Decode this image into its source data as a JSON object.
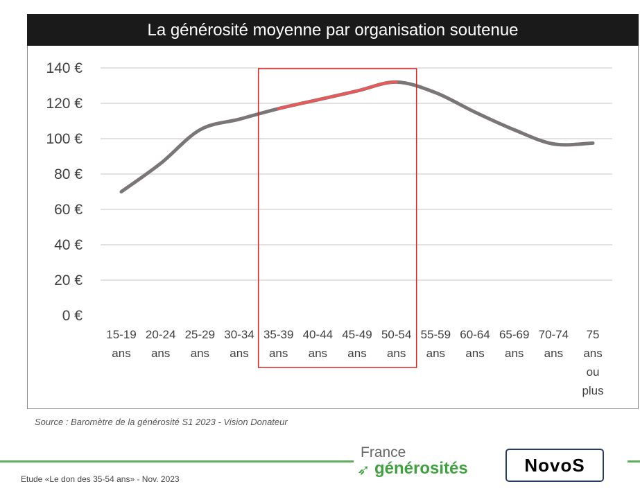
{
  "chart_data": {
    "type": "line",
    "title": "La générosité moyenne par organisation soutenue",
    "categories": [
      [
        "15-19",
        "ans"
      ],
      [
        "20-24",
        "ans"
      ],
      [
        "25-29",
        "ans"
      ],
      [
        "30-34",
        "ans"
      ],
      [
        "35-39",
        "ans"
      ],
      [
        "40-44",
        "ans"
      ],
      [
        "45-49",
        "ans"
      ],
      [
        "50-54",
        "ans"
      ],
      [
        "55-59",
        "ans"
      ],
      [
        "60-64",
        "ans"
      ],
      [
        "65-69",
        "ans"
      ],
      [
        "70-74",
        "ans"
      ],
      [
        "75",
        "ans",
        "ou",
        "plus"
      ]
    ],
    "series": [
      {
        "values": [
          70,
          86,
          105,
          111,
          117,
          122,
          127,
          132,
          126,
          115,
          105,
          97,
          97.5
        ],
        "color": "#7a7576"
      }
    ],
    "highlight": {
      "from": "35-39",
      "to": "50-54",
      "color": "#e85a5a",
      "box_color": "#e02020"
    },
    "y_ticks": [
      "0 €",
      "20 €",
      "40 €",
      "60 €",
      "80 €",
      "100 €",
      "120 €",
      "140 €"
    ],
    "ylim": [
      0,
      140
    ],
    "grid": true
  },
  "source": "Source : Baromètre de la générosité S1 2023 - Vision Donateur",
  "footer": "Etude «Le don des 35-54 ans» - Nov. 2023",
  "logos": {
    "france_generosites": [
      "France",
      "générosités"
    ],
    "novos": "NovoS"
  }
}
